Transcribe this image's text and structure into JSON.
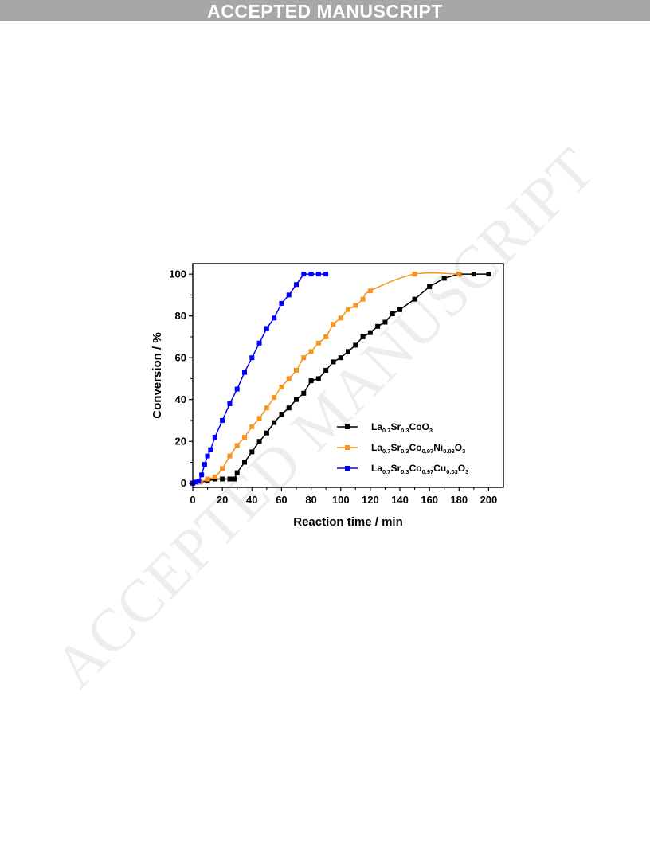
{
  "header": {
    "banner_text": "ACCEPTED MANUSCRIPT",
    "watermark_text": "ACCEPTED MANUSCRIPT"
  },
  "colors": {
    "banner_bg": "#a7a7a7",
    "series_black": "#000000",
    "series_orange": "#f7941d",
    "series_blue": "#0000ff"
  },
  "chart_data": {
    "type": "line",
    "title": "",
    "xlabel": "Reaction time / min",
    "ylabel": "Conversion / %",
    "xlim": [
      0,
      210
    ],
    "ylim": [
      -2,
      105
    ],
    "xticks": [
      0,
      20,
      40,
      60,
      80,
      100,
      120,
      140,
      160,
      180,
      200
    ],
    "yticks": [
      0,
      20,
      40,
      60,
      80,
      100
    ],
    "grid": false,
    "legend_position": "lower-right",
    "series": [
      {
        "name": "La0.7Sr0.3CoO3",
        "legend_parts": [
          [
            "La",
            ""
          ],
          [
            "0.7",
            "sub"
          ],
          [
            "Sr",
            ""
          ],
          [
            "0.3",
            "sub"
          ],
          [
            "CoO",
            ""
          ],
          [
            "3",
            "sub"
          ]
        ],
        "color": "#000000",
        "marker": "square",
        "smooth": false,
        "x": [
          0,
          5,
          10,
          15,
          20,
          25,
          28,
          30,
          35,
          40,
          45,
          50,
          55,
          60,
          65,
          70,
          75,
          80,
          85,
          90,
          95,
          100,
          105,
          110,
          115,
          120,
          125,
          130,
          135,
          140,
          150,
          160,
          170,
          180,
          190,
          200
        ],
        "y": [
          0,
          0.5,
          1,
          2,
          2,
          2,
          2,
          5,
          10,
          15,
          20,
          24,
          29,
          33,
          36,
          40,
          43,
          49,
          50,
          54,
          58,
          60,
          63,
          66,
          70,
          72,
          75,
          77,
          81,
          83,
          88,
          94,
          98,
          100,
          100,
          100
        ]
      },
      {
        "name": "La0.7Sr0.3Co0.97Ni0.03O3",
        "legend_parts": [
          [
            "La",
            ""
          ],
          [
            "0.7",
            "sub"
          ],
          [
            "Sr",
            ""
          ],
          [
            "0.3",
            "sub"
          ],
          [
            "Co",
            ""
          ],
          [
            "0.97",
            "sub"
          ],
          [
            "Ni",
            ""
          ],
          [
            "0.03",
            "sub"
          ],
          [
            "O",
            ""
          ],
          [
            "3",
            "sub"
          ]
        ],
        "color": "#f7941d",
        "marker": "square",
        "smooth": true,
        "x": [
          0,
          5,
          10,
          15,
          20,
          25,
          30,
          35,
          40,
          45,
          50,
          55,
          60,
          65,
          70,
          75,
          80,
          85,
          90,
          95,
          100,
          105,
          110,
          115,
          120,
          150,
          180
        ],
        "y": [
          0,
          0.5,
          2,
          3,
          7,
          13,
          18,
          22,
          27,
          31,
          36,
          41,
          46,
          50,
          54,
          60,
          63,
          67,
          70,
          76,
          79,
          83,
          85,
          88,
          92,
          100,
          100
        ]
      },
      {
        "name": "La0.7Sr0.3Co0.97Cu0.03O3",
        "legend_parts": [
          [
            "La",
            ""
          ],
          [
            "0.7",
            "sub"
          ],
          [
            "Sr",
            ""
          ],
          [
            "0.3",
            "sub"
          ],
          [
            "Co",
            ""
          ],
          [
            "0.97",
            "sub"
          ],
          [
            "Cu",
            ""
          ],
          [
            "0.03",
            "sub"
          ],
          [
            "O",
            ""
          ],
          [
            "3",
            "sub"
          ]
        ],
        "color": "#0000ff",
        "marker": "square",
        "smooth": false,
        "x": [
          0,
          2,
          4,
          6,
          8,
          10,
          12,
          15,
          20,
          25,
          30,
          35,
          40,
          45,
          50,
          55,
          60,
          65,
          70,
          75,
          80,
          85,
          90
        ],
        "y": [
          0,
          0.5,
          1,
          4,
          9,
          13,
          16,
          22,
          30,
          38,
          45,
          53,
          60,
          67,
          74,
          79,
          86,
          90,
          95,
          100,
          100,
          100,
          100
        ]
      }
    ]
  }
}
